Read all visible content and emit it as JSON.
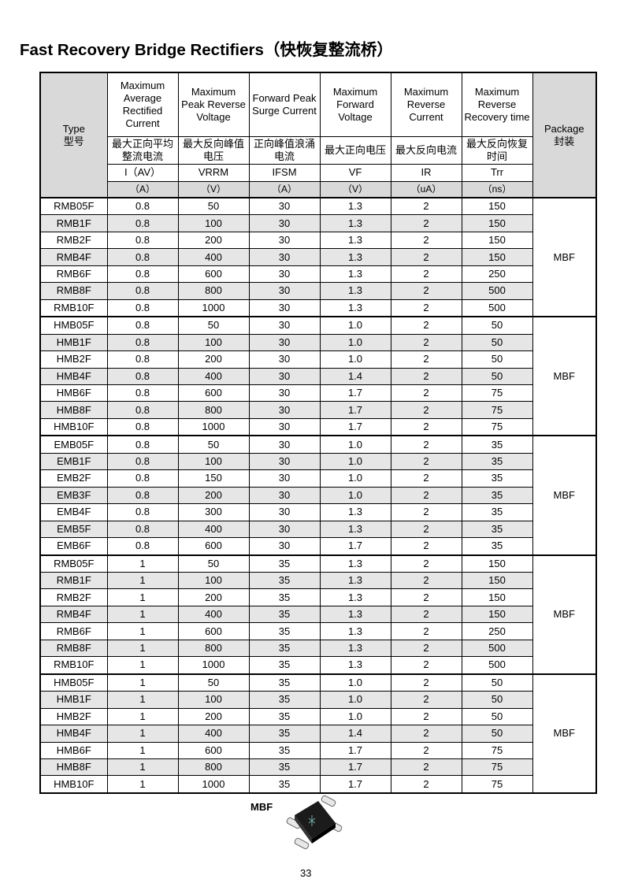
{
  "title": "Fast Recovery Bridge Rectifiers（快恢复整流桥）",
  "table": {
    "header": {
      "type": "Type",
      "type_cn": "型号",
      "package": "Package",
      "package_cn": "封装",
      "columns": [
        {
          "en": "Maximum Average Rectified Current",
          "cn": "最大正向平均整流电流",
          "symbol": "I（AV）",
          "unit": "（A）"
        },
        {
          "en": "Maximum Peak Reverse Voltage",
          "cn": "最大反向峰值电压",
          "symbol": "VRRM",
          "unit": "（V）"
        },
        {
          "en": "Forward Peak Surge Current",
          "cn": "正向峰值浪涌电流",
          "symbol": "IFSM",
          "unit": "（A）"
        },
        {
          "en": "Maximum Forward Voltage",
          "cn": "最大正向电压",
          "symbol": "VF",
          "unit": "（V）"
        },
        {
          "en": "Maximum Reverse Current",
          "cn": "最大反向电流",
          "symbol": "IR",
          "unit": "（uA）"
        },
        {
          "en": "Maximum Reverse Recovery time",
          "cn": "最大反向恢复时间",
          "symbol": "Trr",
          "unit": "（ns）"
        }
      ]
    },
    "groups": [
      {
        "package": "MBF",
        "rows": [
          [
            "RMB05F",
            "0.8",
            "50",
            "30",
            "1.3",
            "2",
            "150"
          ],
          [
            "RMB1F",
            "0.8",
            "100",
            "30",
            "1.3",
            "2",
            "150"
          ],
          [
            "RMB2F",
            "0.8",
            "200",
            "30",
            "1.3",
            "2",
            "150"
          ],
          [
            "RMB4F",
            "0.8",
            "400",
            "30",
            "1.3",
            "2",
            "150"
          ],
          [
            "RMB6F",
            "0.8",
            "600",
            "30",
            "1.3",
            "2",
            "250"
          ],
          [
            "RMB8F",
            "0.8",
            "800",
            "30",
            "1.3",
            "2",
            "500"
          ],
          [
            "RMB10F",
            "0.8",
            "1000",
            "30",
            "1.3",
            "2",
            "500"
          ]
        ]
      },
      {
        "package": "MBF",
        "rows": [
          [
            "HMB05F",
            "0.8",
            "50",
            "30",
            "1.0",
            "2",
            "50"
          ],
          [
            "HMB1F",
            "0.8",
            "100",
            "30",
            "1.0",
            "2",
            "50"
          ],
          [
            "HMB2F",
            "0.8",
            "200",
            "30",
            "1.0",
            "2",
            "50"
          ],
          [
            "HMB4F",
            "0.8",
            "400",
            "30",
            "1.4",
            "2",
            "50"
          ],
          [
            "HMB6F",
            "0.8",
            "600",
            "30",
            "1.7",
            "2",
            "75"
          ],
          [
            "HMB8F",
            "0.8",
            "800",
            "30",
            "1.7",
            "2",
            "75"
          ],
          [
            "HMB10F",
            "0.8",
            "1000",
            "30",
            "1.7",
            "2",
            "75"
          ]
        ]
      },
      {
        "package": "MBF",
        "rows": [
          [
            "EMB05F",
            "0.8",
            "50",
            "30",
            "1.0",
            "2",
            "35"
          ],
          [
            "EMB1F",
            "0.8",
            "100",
            "30",
            "1.0",
            "2",
            "35"
          ],
          [
            "EMB2F",
            "0.8",
            "150",
            "30",
            "1.0",
            "2",
            "35"
          ],
          [
            "EMB3F",
            "0.8",
            "200",
            "30",
            "1.0",
            "2",
            "35"
          ],
          [
            "EMB4F",
            "0.8",
            "300",
            "30",
            "1.3",
            "2",
            "35"
          ],
          [
            "EMB5F",
            "0.8",
            "400",
            "30",
            "1.3",
            "2",
            "35"
          ],
          [
            "EMB6F",
            "0.8",
            "600",
            "30",
            "1.7",
            "2",
            "35"
          ]
        ]
      },
      {
        "package": "MBF",
        "rows": [
          [
            "RMB05F",
            "1",
            "50",
            "35",
            "1.3",
            "2",
            "150"
          ],
          [
            "RMB1F",
            "1",
            "100",
            "35",
            "1.3",
            "2",
            "150"
          ],
          [
            "RMB2F",
            "1",
            "200",
            "35",
            "1.3",
            "2",
            "150"
          ],
          [
            "RMB4F",
            "1",
            "400",
            "35",
            "1.3",
            "2",
            "150"
          ],
          [
            "RMB6F",
            "1",
            "600",
            "35",
            "1.3",
            "2",
            "250"
          ],
          [
            "RMB8F",
            "1",
            "800",
            "35",
            "1.3",
            "2",
            "500"
          ],
          [
            "RMB10F",
            "1",
            "1000",
            "35",
            "1.3",
            "2",
            "500"
          ]
        ]
      },
      {
        "package": "MBF",
        "rows": [
          [
            "HMB05F",
            "1",
            "50",
            "35",
            "1.0",
            "2",
            "50"
          ],
          [
            "HMB1F",
            "1",
            "100",
            "35",
            "1.0",
            "2",
            "50"
          ],
          [
            "HMB2F",
            "1",
            "200",
            "35",
            "1.0",
            "2",
            "50"
          ],
          [
            "HMB4F",
            "1",
            "400",
            "35",
            "1.4",
            "2",
            "50"
          ],
          [
            "HMB6F",
            "1",
            "600",
            "35",
            "1.7",
            "2",
            "75"
          ],
          [
            "HMB8F",
            "1",
            "800",
            "35",
            "1.7",
            "2",
            "75"
          ],
          [
            "HMB10F",
            "1",
            "1000",
            "35",
            "1.7",
            "2",
            "75"
          ]
        ]
      }
    ]
  },
  "footer": {
    "package_label": "MBF",
    "page_number": "33"
  }
}
